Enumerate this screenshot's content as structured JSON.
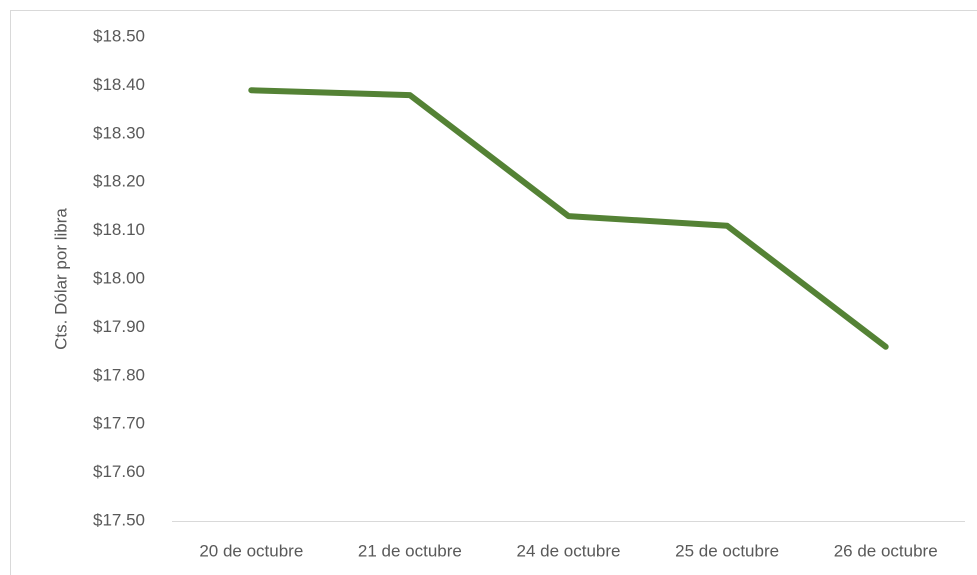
{
  "chart_data": {
    "type": "line",
    "y_label": "Cts. Dólar por libra",
    "categories": [
      "20 de octubre",
      "21 de octubre",
      "24 de octubre",
      "25 de octubre",
      "26 de octubre"
    ],
    "series": [
      {
        "color": "#548235",
        "values": [
          18.39,
          18.38,
          18.13,
          18.11,
          17.86
        ]
      }
    ],
    "ylim": [
      17.5,
      18.5
    ],
    "yticks": [
      {
        "value": 17.5,
        "label": "$17.50"
      },
      {
        "value": 17.6,
        "label": "$17.60"
      },
      {
        "value": 17.7,
        "label": "$17.70"
      },
      {
        "value": 17.8,
        "label": "$17.80"
      },
      {
        "value": 17.9,
        "label": "$17.90"
      },
      {
        "value": 18.0,
        "label": "$18.00"
      },
      {
        "value": 18.1,
        "label": "$18.10"
      },
      {
        "value": 18.2,
        "label": "$18.20"
      },
      {
        "value": 18.3,
        "label": "$18.30"
      },
      {
        "value": 18.4,
        "label": "$18.40"
      },
      {
        "value": 18.5,
        "label": "$18.50"
      }
    ],
    "grid": false
  }
}
